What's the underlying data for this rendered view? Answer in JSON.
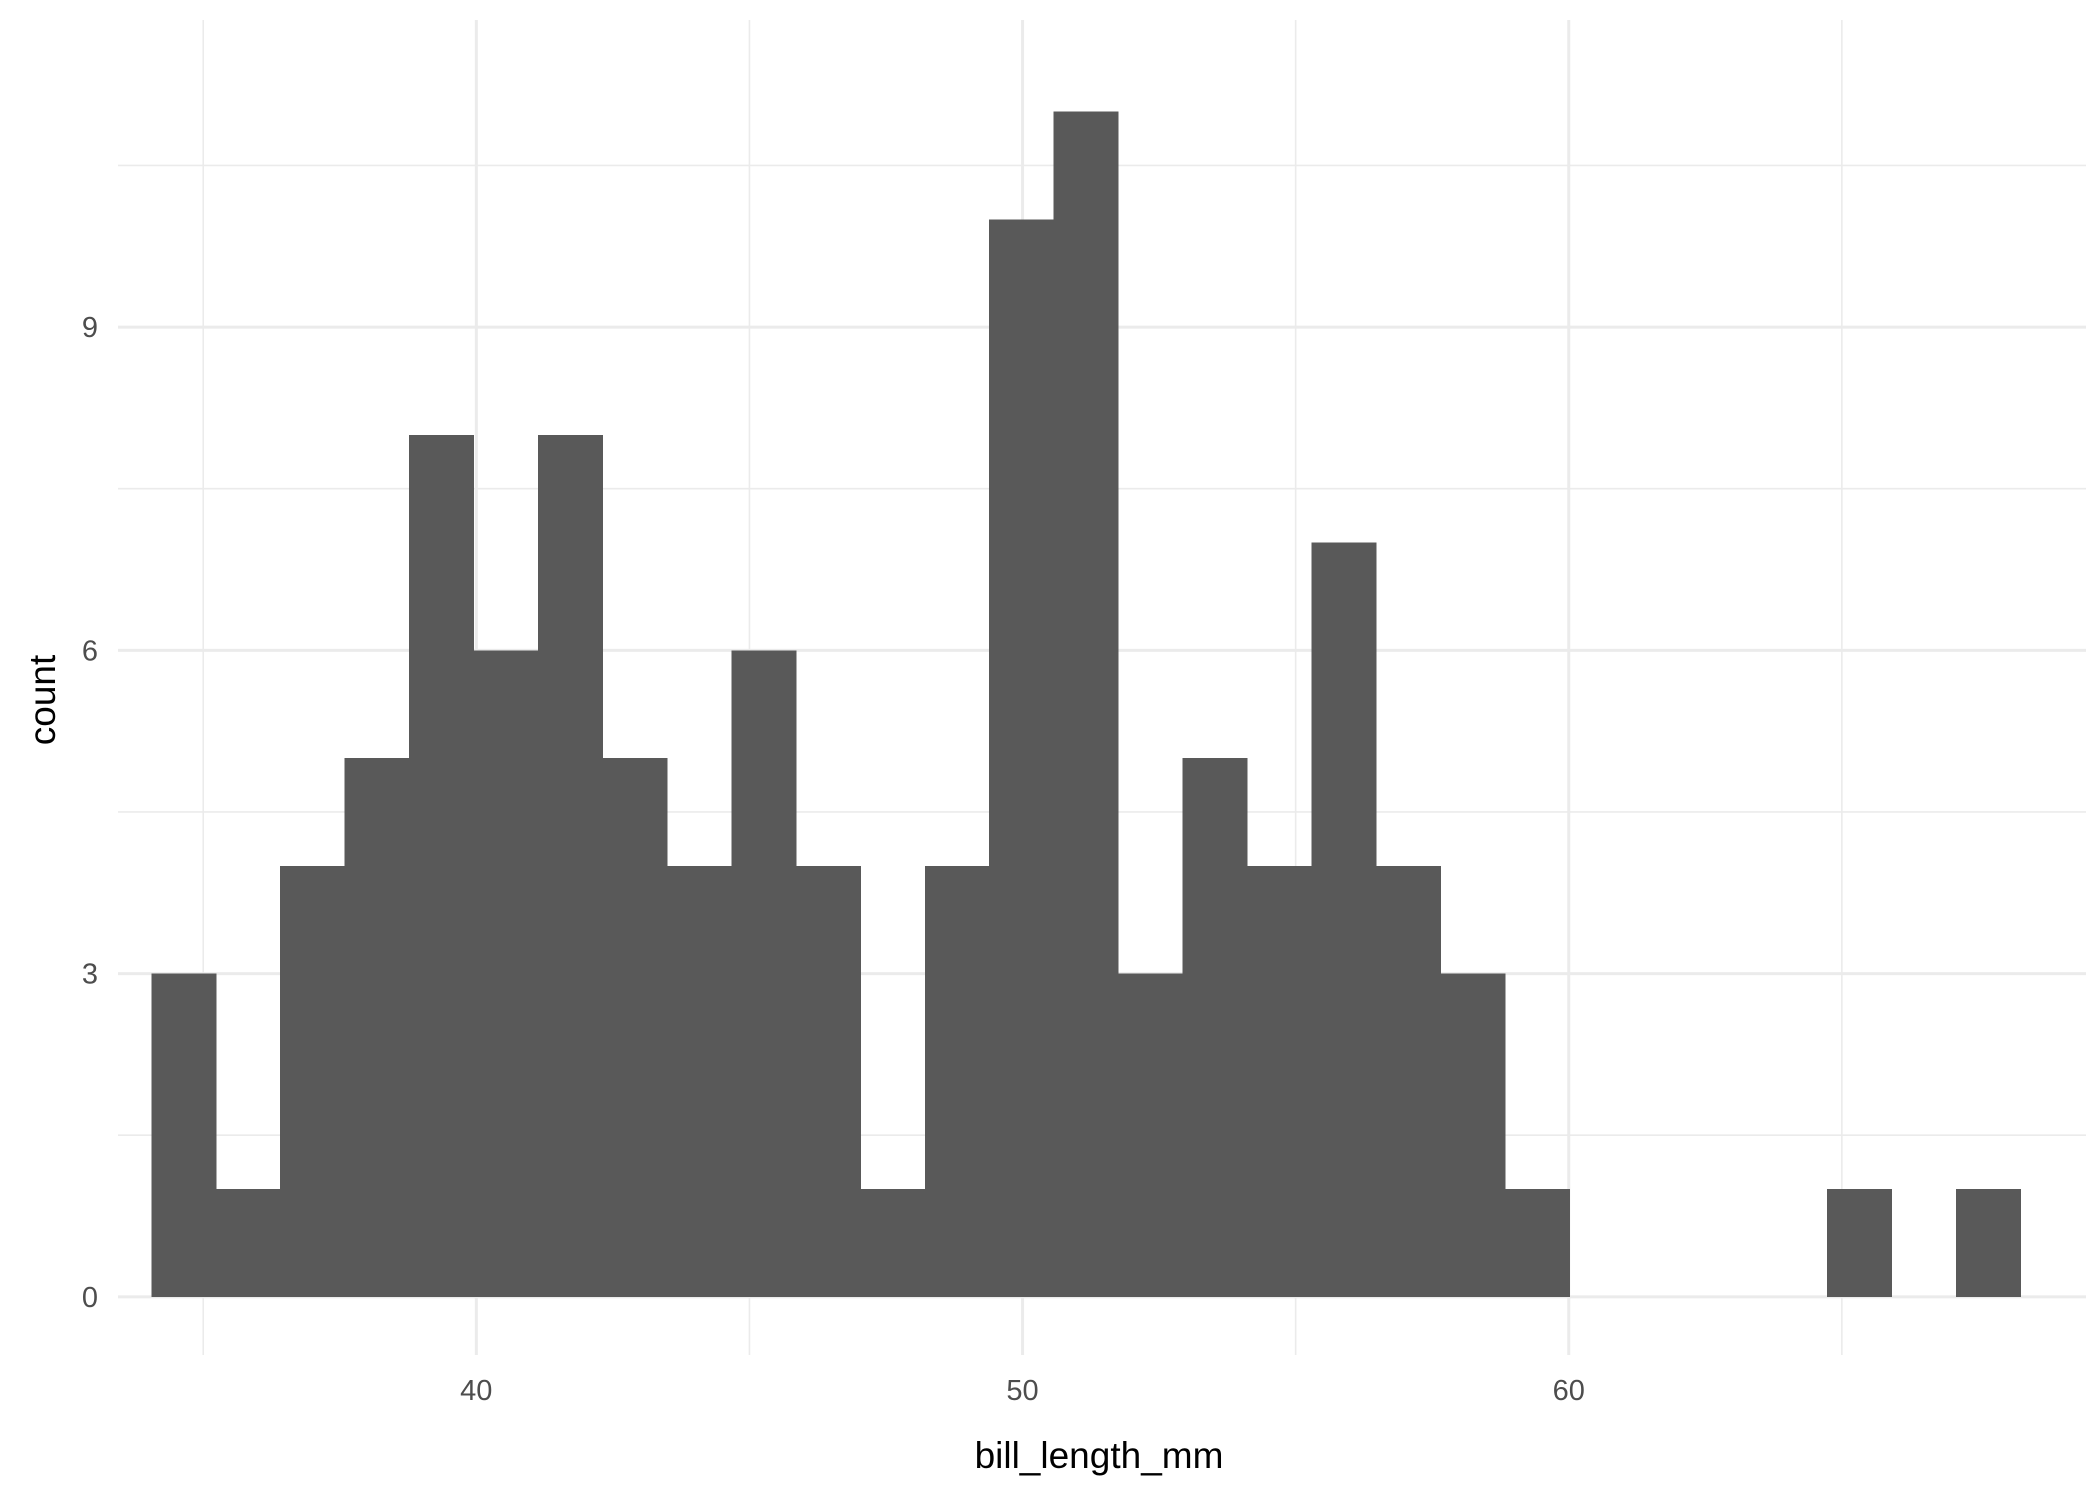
{
  "chart_data": {
    "type": "bar",
    "bin_width": 1.18,
    "bins": [
      {
        "x": 34.64,
        "count": 3
      },
      {
        "x": 35.82,
        "count": 1
      },
      {
        "x": 37.0,
        "count": 4
      },
      {
        "x": 38.18,
        "count": 5
      },
      {
        "x": 39.36,
        "count": 8
      },
      {
        "x": 40.54,
        "count": 6
      },
      {
        "x": 41.72,
        "count": 8
      },
      {
        "x": 42.9,
        "count": 5
      },
      {
        "x": 44.08,
        "count": 4
      },
      {
        "x": 45.26,
        "count": 6
      },
      {
        "x": 46.44,
        "count": 4
      },
      {
        "x": 47.62,
        "count": 1
      },
      {
        "x": 48.8,
        "count": 4
      },
      {
        "x": 49.98,
        "count": 10
      },
      {
        "x": 51.16,
        "count": 11
      },
      {
        "x": 52.34,
        "count": 3
      },
      {
        "x": 53.52,
        "count": 5
      },
      {
        "x": 54.7,
        "count": 4
      },
      {
        "x": 55.88,
        "count": 7
      },
      {
        "x": 57.06,
        "count": 4
      },
      {
        "x": 58.24,
        "count": 3
      },
      {
        "x": 59.42,
        "count": 1
      },
      {
        "x": 60.6,
        "count": 0
      },
      {
        "x": 61.78,
        "count": 0
      },
      {
        "x": 62.96,
        "count": 0
      },
      {
        "x": 64.14,
        "count": 0
      },
      {
        "x": 65.32,
        "count": 1
      },
      {
        "x": 66.5,
        "count": 0
      },
      {
        "x": 67.68,
        "count": 1
      }
    ],
    "xlabel": "bill_length_mm",
    "ylabel": "count",
    "xlim": [
      33.44,
      69.47
    ],
    "ylim": [
      -0.54,
      11.85
    ],
    "x_ticks": [
      {
        "value": 40,
        "label": "40"
      },
      {
        "value": 50,
        "label": "50"
      },
      {
        "value": 60,
        "label": "60"
      }
    ],
    "y_ticks": [
      {
        "value": 0,
        "label": "0"
      },
      {
        "value": 3,
        "label": "3"
      },
      {
        "value": 6,
        "label": "6"
      },
      {
        "value": 9,
        "label": "9"
      }
    ],
    "x_minor_ticks": [
      35,
      45,
      55,
      65
    ],
    "y_minor_ticks": [
      1.5,
      4.5,
      7.5,
      10.5
    ],
    "grid": true,
    "legend": "none",
    "colors": {
      "bar": "#595959",
      "grid": "#ebebeb",
      "background": "#ffffff"
    }
  }
}
